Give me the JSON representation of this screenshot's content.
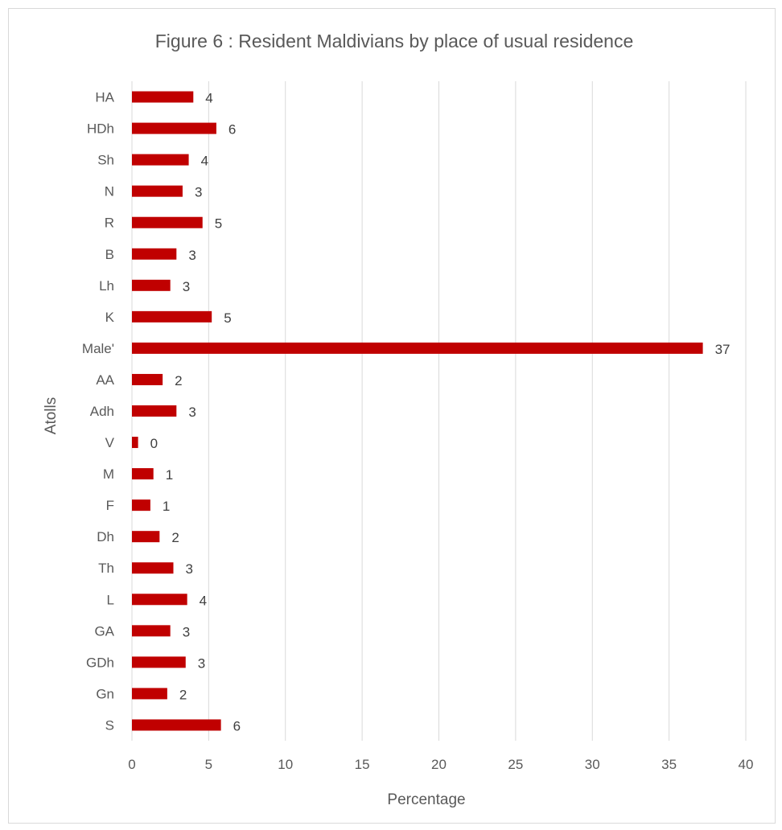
{
  "chart_data": {
    "type": "bar",
    "orientation": "horizontal",
    "title": "Figure 6 : Resident Maldivians  by place of usual residence",
    "xlabel": "Percentage",
    "ylabel": "Atolls",
    "xlim": [
      0,
      40
    ],
    "x_ticks": [
      0,
      5,
      10,
      15,
      20,
      25,
      30,
      35,
      40
    ],
    "grid": "vertical",
    "legend": "none",
    "bar_color": "#c00000",
    "categories": [
      "HA",
      "HDh",
      "Sh",
      "N",
      "R",
      "B",
      "Lh",
      "K",
      "Male'",
      "AA",
      "Adh",
      "V",
      "M",
      "F",
      "Dh",
      "Th",
      "L",
      "GA",
      "GDh",
      "Gn",
      "S"
    ],
    "values": [
      4.0,
      5.5,
      3.7,
      3.3,
      4.6,
      2.9,
      2.5,
      5.2,
      37.2,
      2.0,
      2.9,
      0.4,
      1.4,
      1.2,
      1.8,
      2.7,
      3.6,
      2.5,
      3.5,
      2.3,
      5.8
    ],
    "data_labels": [
      "4",
      "6",
      "4",
      "3",
      "5",
      "3",
      "3",
      "5",
      "37",
      "2",
      "3",
      "0",
      "1",
      "1",
      "2",
      "3",
      "4",
      "3",
      "3",
      "2",
      "6"
    ]
  }
}
